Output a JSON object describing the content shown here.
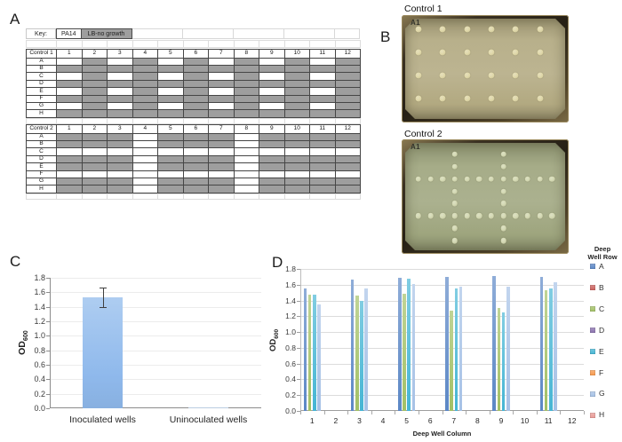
{
  "panel_labels": {
    "a": "A",
    "b": "B",
    "c": "C",
    "d": "D"
  },
  "key": {
    "label": "Key:",
    "pa14": "PA14",
    "lb": "LB-no growth"
  },
  "well_colors": {
    "pa14": "#ffffff",
    "lb_no_growth": "#9e9e9e"
  },
  "plate_maps": {
    "column_headers": [
      "1",
      "2",
      "3",
      "4",
      "5",
      "6",
      "7",
      "8",
      "9",
      "10",
      "11",
      "12"
    ],
    "row_labels": [
      "A",
      "B",
      "C",
      "D",
      "E",
      "F",
      "G",
      "H"
    ],
    "tables": [
      {
        "title": "Control 1",
        "pattern": [
          [
            1,
            0,
            1,
            0,
            1,
            0,
            1,
            0,
            1,
            0,
            1,
            0
          ],
          [
            0,
            0,
            0,
            0,
            0,
            0,
            0,
            0,
            0,
            0,
            0,
            0
          ],
          [
            1,
            0,
            1,
            0,
            1,
            0,
            1,
            0,
            1,
            0,
            1,
            0
          ],
          [
            0,
            0,
            0,
            0,
            0,
            0,
            0,
            0,
            0,
            0,
            0,
            0
          ],
          [
            1,
            0,
            1,
            0,
            1,
            0,
            1,
            0,
            1,
            0,
            1,
            0
          ],
          [
            0,
            0,
            0,
            0,
            0,
            0,
            0,
            0,
            0,
            0,
            0,
            0
          ],
          [
            1,
            0,
            1,
            0,
            1,
            0,
            1,
            0,
            1,
            0,
            1,
            0
          ],
          [
            0,
            0,
            0,
            0,
            0,
            0,
            0,
            0,
            0,
            0,
            0,
            0
          ]
        ]
      },
      {
        "title": "Control 2",
        "pattern": [
          [
            0,
            0,
            0,
            1,
            0,
            0,
            0,
            1,
            0,
            0,
            0,
            0
          ],
          [
            0,
            0,
            0,
            1,
            0,
            0,
            0,
            1,
            0,
            0,
            0,
            0
          ],
          [
            1,
            1,
            1,
            1,
            1,
            1,
            1,
            1,
            1,
            1,
            1,
            1
          ],
          [
            0,
            0,
            0,
            1,
            0,
            0,
            0,
            1,
            0,
            0,
            0,
            0
          ],
          [
            0,
            0,
            0,
            1,
            0,
            0,
            0,
            1,
            0,
            0,
            0,
            0
          ],
          [
            1,
            1,
            1,
            1,
            1,
            1,
            1,
            1,
            1,
            1,
            1,
            1
          ],
          [
            0,
            0,
            0,
            1,
            0,
            0,
            0,
            1,
            0,
            0,
            0,
            0
          ],
          [
            0,
            0,
            0,
            1,
            0,
            0,
            0,
            1,
            0,
            0,
            0,
            0
          ]
        ]
      }
    ]
  },
  "photos": [
    {
      "title": "Control 1",
      "corner_label": "A1",
      "agar_color": "#b2a981",
      "colony_color": "#ded6a6"
    },
    {
      "title": "Control 2",
      "corner_label": "A1",
      "agar_color": "#9ea57e",
      "colony_color": "#d2d7b0"
    }
  ],
  "chart_data": [
    {
      "id": "panel_c",
      "type": "bar",
      "categories": [
        "Inoculated wells",
        "Uninoculated wells"
      ],
      "values": [
        1.53,
        0.005
      ],
      "error_bars": [
        {
          "low": 1.4,
          "high": 1.67
        },
        null
      ],
      "ylabel_main": "OD",
      "ylabel_sub": "600",
      "ylim": [
        0,
        1.8
      ],
      "yticks": [
        "0.0",
        "0.2",
        "0.4",
        "0.6",
        "0.8",
        "1.0",
        "1.2",
        "1.4",
        "1.6",
        "1.8"
      ],
      "grid": true,
      "bar_color": "#8fb9ec"
    },
    {
      "id": "panel_d",
      "type": "grouped_bar",
      "categories": [
        "1",
        "2",
        "3",
        "4",
        "5",
        "6",
        "7",
        "8",
        "9",
        "10",
        "11",
        "12"
      ],
      "xlabel": "Deep Well Column",
      "ylabel_main": "OD",
      "ylabel_sub": "600",
      "ylim": [
        0,
        1.8
      ],
      "yticks": [
        "0.0",
        "0.2",
        "0.4",
        "0.6",
        "0.8",
        "1.0",
        "1.2",
        "1.4",
        "1.6",
        "1.8"
      ],
      "grid": true,
      "legend_title": "Deep Well Row",
      "legend_position": "right",
      "series": [
        {
          "name": "A",
          "color": "#5b87c5",
          "values": [
            1.55,
            0,
            1.66,
            0,
            1.69,
            0,
            1.7,
            0,
            1.71,
            0,
            1.7,
            0
          ]
        },
        {
          "name": "B",
          "color": "#cb615d",
          "values": [
            0,
            0,
            0,
            0,
            0,
            0,
            0,
            0,
            0,
            0,
            0,
            0
          ]
        },
        {
          "name": "C",
          "color": "#a2c065",
          "values": [
            1.47,
            0,
            1.46,
            0,
            1.48,
            0,
            1.27,
            0,
            1.3,
            0,
            1.53,
            0
          ]
        },
        {
          "name": "D",
          "color": "#8a71ae",
          "values": [
            0,
            0,
            0,
            0,
            0,
            0,
            0,
            0,
            0,
            0,
            0,
            0
          ]
        },
        {
          "name": "E",
          "color": "#45b5d4",
          "values": [
            1.47,
            0,
            1.4,
            0,
            1.68,
            0,
            1.55,
            0,
            1.25,
            0,
            1.55,
            0
          ]
        },
        {
          "name": "F",
          "color": "#f79a4d",
          "values": [
            0,
            0,
            0,
            0,
            0,
            0,
            0,
            0,
            0,
            0,
            0,
            0
          ]
        },
        {
          "name": "G",
          "color": "#a6c1e6",
          "values": [
            1.35,
            0,
            1.55,
            0,
            1.61,
            0,
            1.57,
            0,
            1.58,
            0,
            1.63,
            0
          ]
        },
        {
          "name": "H",
          "color": "#e99b97",
          "values": [
            0,
            0,
            0,
            0,
            0,
            0,
            0,
            0,
            0,
            0,
            0,
            0
          ]
        }
      ]
    }
  ]
}
